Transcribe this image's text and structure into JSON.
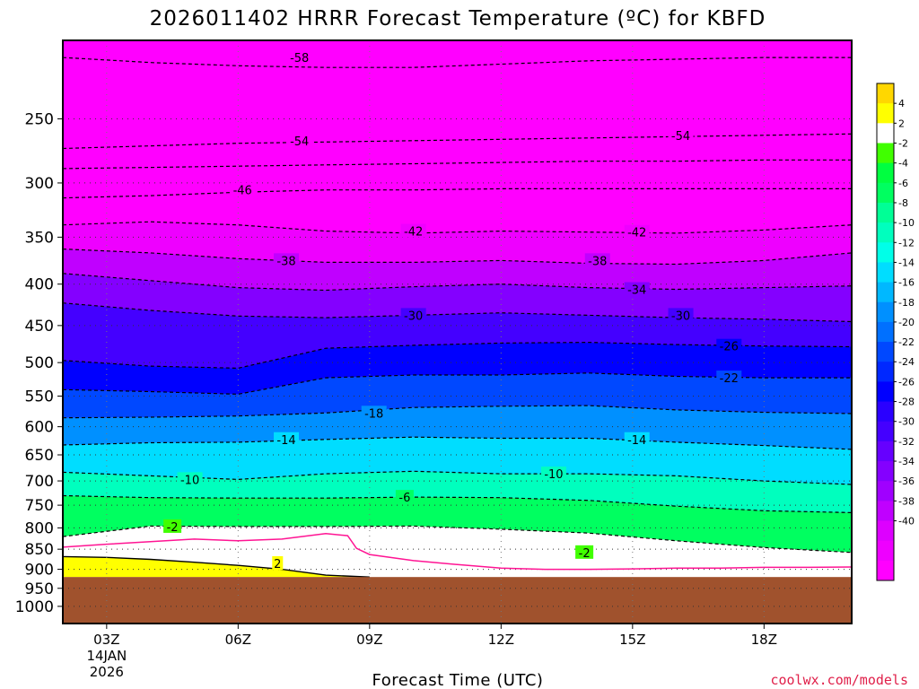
{
  "chart_data": {
    "type": "heatmap",
    "title": "2026011402 HRRR Forecast Temperature (ºC) for KBFD",
    "xlabel": "Forecast Time (UTC)",
    "ylabel": "",
    "credit": "coolwx.com/models",
    "x_ticks": [
      {
        "hour": 3,
        "label": "03Z",
        "sub": [
          "14JAN",
          "2026"
        ]
      },
      {
        "hour": 6,
        "label": "06Z",
        "sub": []
      },
      {
        "hour": 9,
        "label": "09Z",
        "sub": []
      },
      {
        "hour": 12,
        "label": "12Z",
        "sub": []
      },
      {
        "hour": 15,
        "label": "15Z",
        "sub": []
      },
      {
        "hour": 18,
        "label": "18Z",
        "sub": []
      }
    ],
    "xlim": [
      2,
      20
    ],
    "y_scale": "log-pressure (hPa), inverted",
    "y_ticks": [
      250,
      300,
      350,
      400,
      450,
      500,
      550,
      600,
      650,
      700,
      750,
      800,
      850,
      900,
      950,
      1000
    ],
    "ylim": [
      1050,
      200
    ],
    "ground_level_hPa": 920,
    "grid": true,
    "colorbar": {
      "levels": [
        -42,
        -40,
        -38,
        -36,
        -34,
        -32,
        -30,
        -28,
        -26,
        -24,
        -22,
        -20,
        -18,
        -16,
        -14,
        -12,
        -10,
        -8,
        -6,
        -4,
        -2,
        2,
        4,
        6
      ],
      "colors": [
        "#ff00ff",
        "#ee00ff",
        "#dd00ff",
        "#c000ff",
        "#a000ff",
        "#8400ff",
        "#6600ff",
        "#4400ff",
        "#2a00ff",
        "#0000ff",
        "#0028ff",
        "#0048ff",
        "#0070ff",
        "#0090ff",
        "#00b8ff",
        "#00ddff",
        "#00ffe8",
        "#00ffbe",
        "#00ff96",
        "#00ff60",
        "#00ff40",
        "#40ff00",
        "#ffffff",
        "#ffff00",
        "#ffd700"
      ],
      "tick_labels": [
        "4",
        "2",
        "-2",
        "-4",
        "-6",
        "-8",
        "-10",
        "-12",
        "-14",
        "-16",
        "-18",
        "-20",
        "-22",
        "-24",
        "-26",
        "-28",
        "-30",
        "-32",
        "-34",
        "-36",
        "-38",
        "-40"
      ]
    },
    "isotherms": [
      {
        "t": -58,
        "p": [
          210,
          213,
          215,
          216,
          216,
          214,
          212,
          211,
          210,
          210
        ]
      },
      {
        "t": -54,
        "p": [
          272,
          270,
          268,
          267,
          266,
          265,
          264,
          263,
          262,
          261
        ]
      },
      {
        "t": -50,
        "p": [
          288,
          287,
          286,
          285,
          284,
          283,
          282,
          282,
          281,
          281
        ]
      },
      {
        "t": -46,
        "p": [
          313,
          311,
          308,
          306,
          306,
          305,
          305,
          305,
          305,
          305
        ]
      },
      {
        "t": -42,
        "p": [
          338,
          335,
          338,
          344,
          346,
          344,
          345,
          346,
          343,
          338
        ]
      },
      {
        "t": -38,
        "p": [
          362,
          366,
          372,
          376,
          376,
          374,
          377,
          378,
          374,
          366
        ]
      },
      {
        "t": -34,
        "p": [
          388,
          396,
          404,
          407,
          403,
          400,
          404,
          406,
          404,
          402
        ]
      },
      {
        "t": -30,
        "p": [
          422,
          431,
          438,
          440,
          437,
          434,
          437,
          440,
          442,
          445
        ]
      },
      {
        "t": -26,
        "p": [
          497,
          505,
          508,
          480,
          476,
          473,
          472,
          475,
          477,
          478
        ]
      },
      {
        "t": -22,
        "p": [
          540,
          543,
          547,
          522,
          518,
          518,
          515,
          520,
          522,
          522
        ]
      },
      {
        "t": -18,
        "p": [
          585,
          584,
          582,
          577,
          568,
          566,
          565,
          572,
          576,
          578
        ]
      },
      {
        "t": -14,
        "p": [
          632,
          628,
          627,
          622,
          618,
          620,
          620,
          627,
          633,
          640
        ]
      },
      {
        "t": -10,
        "p": [
          683,
          690,
          697,
          686,
          681,
          686,
          686,
          690,
          700,
          707
        ]
      },
      {
        "t": -6,
        "p": [
          730,
          734,
          735,
          735,
          733,
          734,
          740,
          752,
          762,
          766
        ]
      },
      {
        "t": -2,
        "p": [
          820,
          796,
          797,
          797,
          796,
          803,
          812,
          830,
          846,
          858
        ]
      }
    ],
    "zero_line": [
      [
        2,
        845
      ],
      [
        3,
        838
      ],
      [
        4,
        832
      ],
      [
        5,
        826
      ],
      [
        6,
        830
      ],
      [
        7,
        826
      ],
      [
        8,
        813
      ],
      [
        8.5,
        818
      ],
      [
        8.7,
        848
      ],
      [
        9,
        863
      ],
      [
        10,
        878
      ],
      [
        11,
        888
      ],
      [
        12,
        897
      ],
      [
        13,
        900
      ],
      [
        14,
        900
      ],
      [
        15,
        899
      ],
      [
        16,
        897
      ],
      [
        17,
        897
      ],
      [
        18,
        895
      ],
      [
        19,
        895
      ],
      [
        20,
        894
      ]
    ],
    "warm_region": {
      "t": 2,
      "p": [
        868,
        870,
        875,
        882,
        890,
        900,
        915,
        920
      ]
    },
    "label_positions": [
      {
        "t": -58,
        "hour": 7.4,
        "p": 210
      },
      {
        "t": -54,
        "hour": 7.4,
        "p": 266
      },
      {
        "t": -54,
        "hour": 16.1,
        "p": 262
      },
      {
        "t": -46,
        "hour": 6.1,
        "p": 306
      },
      {
        "t": -42,
        "hour": 10.0,
        "p": 344
      },
      {
        "t": -42,
        "hour": 15.1,
        "p": 345
      },
      {
        "t": -38,
        "hour": 7.1,
        "p": 374
      },
      {
        "t": -38,
        "hour": 14.2,
        "p": 374
      },
      {
        "t": -34,
        "hour": 15.1,
        "p": 406
      },
      {
        "t": -30,
        "hour": 10.0,
        "p": 437
      },
      {
        "t": -30,
        "hour": 16.1,
        "p": 437
      },
      {
        "t": -26,
        "hour": 17.2,
        "p": 477
      },
      {
        "t": -22,
        "hour": 17.2,
        "p": 522
      },
      {
        "t": -18,
        "hour": 9.1,
        "p": 577
      },
      {
        "t": -14,
        "hour": 7.1,
        "p": 622
      },
      {
        "t": -14,
        "hour": 15.1,
        "p": 622
      },
      {
        "t": -10,
        "hour": 4.9,
        "p": 697
      },
      {
        "t": -10,
        "hour": 13.2,
        "p": 686
      },
      {
        "t": -6,
        "hour": 9.8,
        "p": 733
      },
      {
        "t": -2,
        "hour": 4.5,
        "p": 797
      },
      {
        "t": -2,
        "hour": 13.9,
        "p": 858
      },
      {
        "t": 2,
        "hour": 6.9,
        "p": 885
      }
    ]
  }
}
